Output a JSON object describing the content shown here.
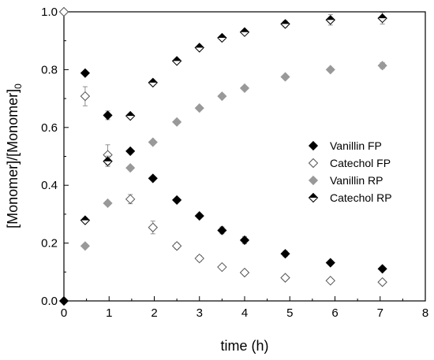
{
  "chart_data": {
    "type": "scatter",
    "xlabel": "time (h)",
    "ylabel": "[Monomer]/[Monomer]",
    "ylabel_subscript": "0",
    "xlim": [
      0,
      8
    ],
    "ylim": [
      0.0,
      1.0
    ],
    "x_ticks": [
      "0",
      "1",
      "2",
      "3",
      "4",
      "5",
      "6",
      "7",
      "8"
    ],
    "y_ticks": [
      "0.0",
      "0.2",
      "0.4",
      "0.6",
      "0.8",
      "1.0"
    ],
    "grid": false,
    "legend_position": "right",
    "series": [
      {
        "name": "Vanillin FP",
        "marker": "diamond-filled",
        "color": "#000000",
        "points": [
          {
            "x": 0,
            "y": 0.0
          },
          {
            "x": 0.47,
            "y": 0.788
          },
          {
            "x": 0.97,
            "y": 0.642,
            "err": 0.015
          },
          {
            "x": 1.47,
            "y": 0.518
          },
          {
            "x": 1.97,
            "y": 0.424
          },
          {
            "x": 2.5,
            "y": 0.349
          },
          {
            "x": 3.0,
            "y": 0.294
          },
          {
            "x": 3.5,
            "y": 0.244,
            "err": 0.012
          },
          {
            "x": 4.0,
            "y": 0.21,
            "err": 0.012
          },
          {
            "x": 4.9,
            "y": 0.163,
            "err": 0.01
          },
          {
            "x": 5.9,
            "y": 0.132
          },
          {
            "x": 7.05,
            "y": 0.111
          }
        ]
      },
      {
        "name": "Catechol FP",
        "marker": "diamond-open",
        "color": "#555555",
        "points": [
          {
            "x": 0,
            "y": 1.0
          },
          {
            "x": 0.47,
            "y": 0.708,
            "err": 0.033
          },
          {
            "x": 0.97,
            "y": 0.505,
            "err": 0.035
          },
          {
            "x": 1.47,
            "y": 0.352,
            "err": 0.016
          },
          {
            "x": 1.97,
            "y": 0.254,
            "err": 0.022
          },
          {
            "x": 2.5,
            "y": 0.19,
            "err": 0.01
          },
          {
            "x": 3.0,
            "y": 0.147,
            "err": 0.01
          },
          {
            "x": 3.5,
            "y": 0.117,
            "err": 0.008
          },
          {
            "x": 4.0,
            "y": 0.098,
            "err": 0.008
          },
          {
            "x": 4.9,
            "y": 0.08,
            "err": 0.008
          },
          {
            "x": 5.9,
            "y": 0.07,
            "err": 0.008
          },
          {
            "x": 7.05,
            "y": 0.065,
            "err": 0.008
          }
        ]
      },
      {
        "name": "Vanillin RP",
        "marker": "diamond-filled",
        "color": "#999999",
        "points": [
          {
            "x": 0.47,
            "y": 0.19
          },
          {
            "x": 0.97,
            "y": 0.338
          },
          {
            "x": 1.47,
            "y": 0.46
          },
          {
            "x": 1.97,
            "y": 0.549
          },
          {
            "x": 2.5,
            "y": 0.619
          },
          {
            "x": 3.0,
            "y": 0.667
          },
          {
            "x": 3.5,
            "y": 0.708
          },
          {
            "x": 4.0,
            "y": 0.736
          },
          {
            "x": 4.9,
            "y": 0.775
          },
          {
            "x": 5.9,
            "y": 0.8
          },
          {
            "x": 7.05,
            "y": 0.814,
            "err": 0.01
          }
        ]
      },
      {
        "name": "Catechol RP",
        "marker": "diamond-half",
        "color": "#000000",
        "points": [
          {
            "x": 0.47,
            "y": 0.279
          },
          {
            "x": 0.97,
            "y": 0.483,
            "err": 0.018
          },
          {
            "x": 1.47,
            "y": 0.64
          },
          {
            "x": 1.97,
            "y": 0.755
          },
          {
            "x": 2.5,
            "y": 0.83
          },
          {
            "x": 3.0,
            "y": 0.876
          },
          {
            "x": 3.5,
            "y": 0.91
          },
          {
            "x": 4.0,
            "y": 0.93
          },
          {
            "x": 4.9,
            "y": 0.958,
            "err": 0.01
          },
          {
            "x": 5.9,
            "y": 0.972,
            "err": 0.018
          },
          {
            "x": 7.05,
            "y": 0.978,
            "err": 0.02
          }
        ]
      }
    ]
  }
}
